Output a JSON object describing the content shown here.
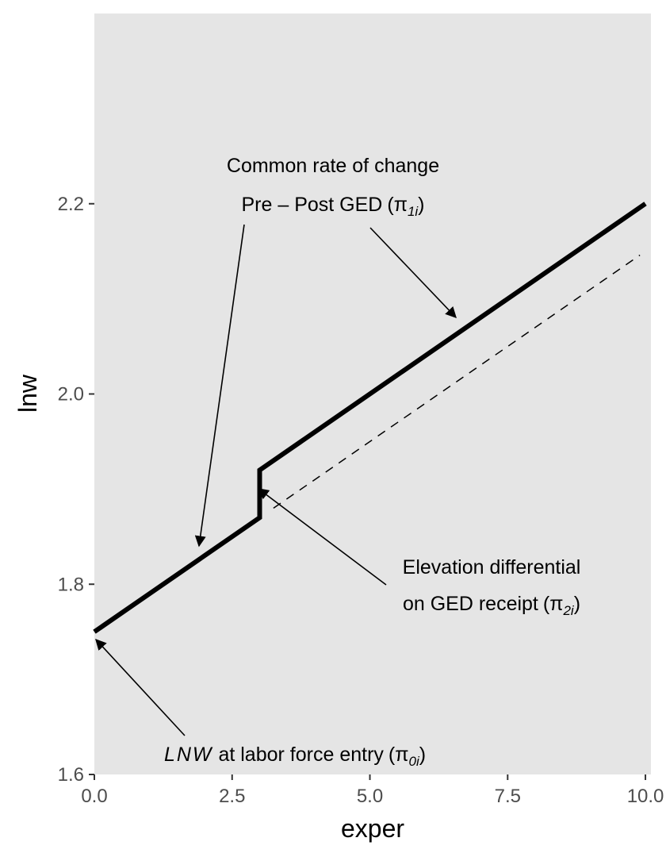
{
  "chart_data": {
    "type": "line",
    "xlabel": "exper",
    "ylabel": "lnw",
    "xlim": [
      0,
      10.1
    ],
    "ylim": [
      1.6,
      2.4
    ],
    "x_ticks": [
      "0.0",
      "2.5",
      "5.0",
      "7.5",
      "10.0"
    ],
    "y_ticks": [
      "1.6",
      "1.8",
      "2.0",
      "2.2"
    ],
    "grid": false,
    "series": [
      {
        "style": "solid",
        "points": [
          [
            0,
            1.75
          ],
          [
            3,
            1.87
          ],
          [
            3,
            1.92
          ],
          [
            10,
            2.2
          ]
        ]
      },
      {
        "style": "dashed",
        "points": [
          [
            3.25,
            1.88
          ],
          [
            9.9,
            2.146
          ]
        ]
      }
    ],
    "annotations": [
      {
        "id": "common-rate",
        "lines": [
          "Common rate of change",
          "Pre – Post GED (π1i)"
        ]
      },
      {
        "id": "elevation",
        "lines": [
          "Elevation differential",
          "on GED receipt (π2i)"
        ]
      },
      {
        "id": "lnw-entry",
        "lines": [
          "LNW at labor force entry (π0i)"
        ]
      }
    ]
  },
  "labels": {
    "common_rate_line1": "Common rate of change",
    "common_rate_line2_a": "Pre – Post GED",
    "elevation_line1": "Elevation differential",
    "elevation_line2_a": "on GED receipt",
    "entry_a": "LNW",
    "entry_b": " at labor force entry",
    "pi": "π",
    "sub_1i": "1i",
    "sub_2i": "2i",
    "sub_0i": "0i",
    "open_paren": "(",
    "close_paren": ")"
  },
  "colors": {
    "panel": "#e5e5e5",
    "line": "#000000",
    "tick_text": "#4d4d4d"
  }
}
